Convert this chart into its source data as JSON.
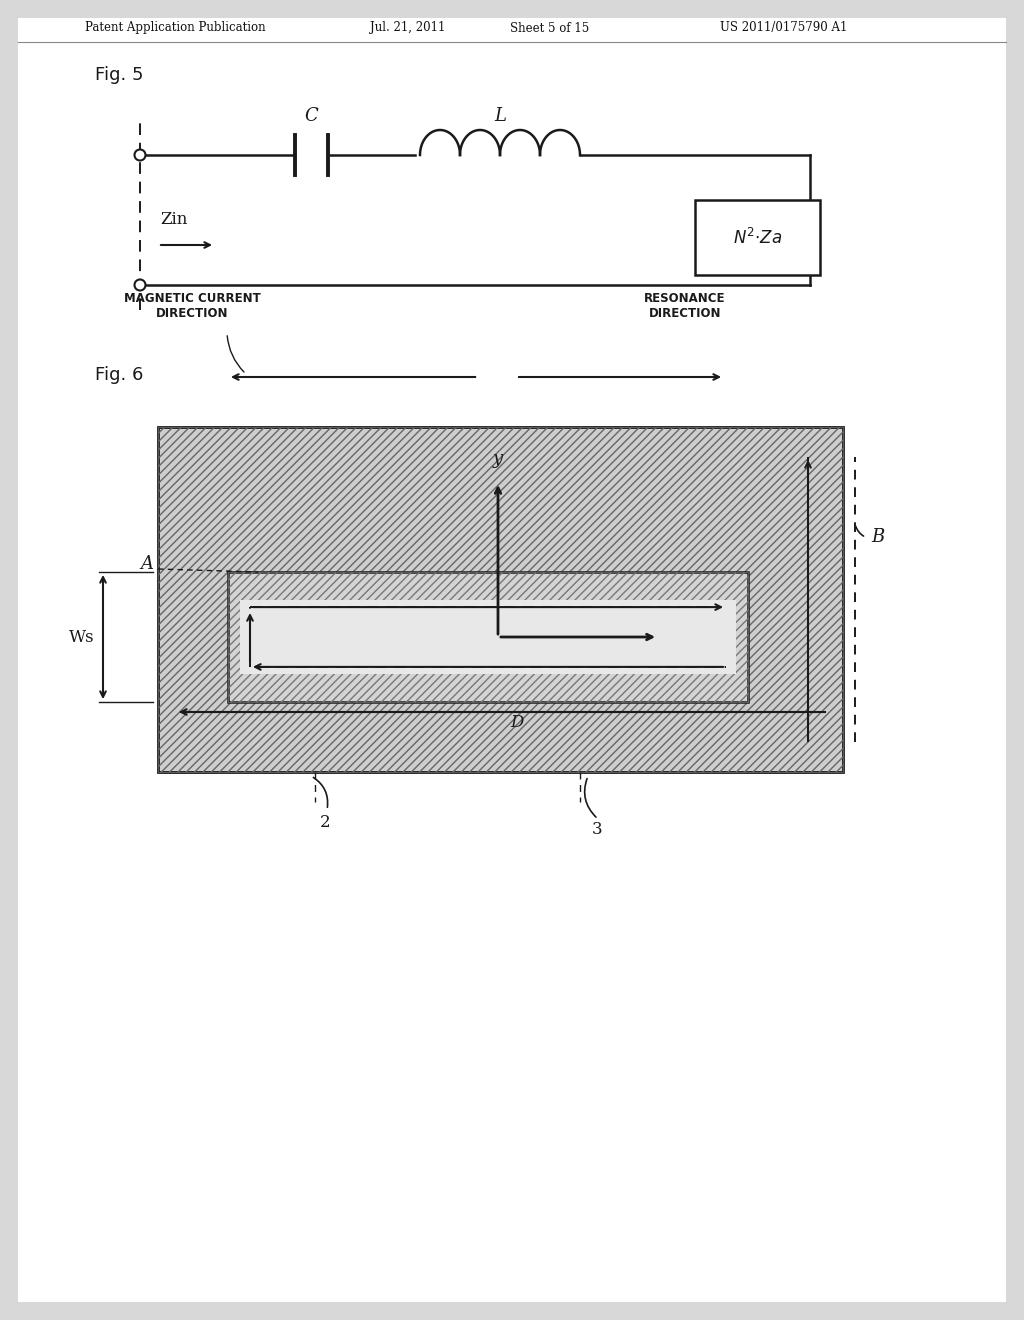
{
  "bg_color": "#d8d8d8",
  "page_bg": "#ffffff",
  "header_text": "Patent Application Publication",
  "header_date": "Jul. 21, 2011",
  "header_sheet": "Sheet 5 of 15",
  "header_patent": "US 2011/0175790 A1",
  "fig5_label": "Fig. 5",
  "fig6_label": "Fig. 6",
  "lc": "#1a1a1a",
  "lw": 1.8
}
